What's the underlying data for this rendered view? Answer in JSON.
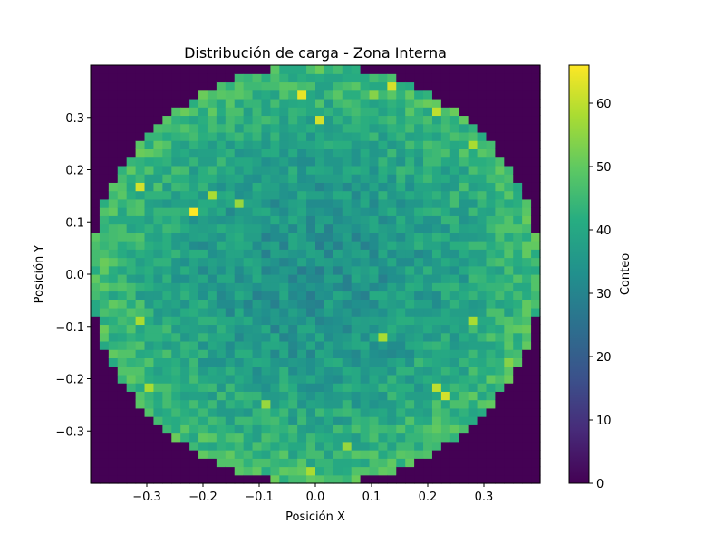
{
  "chart_data": {
    "type": "heatmap",
    "title": "Distribución de carga - Zona Interna",
    "xlabel": "Posición X",
    "ylabel": "Posición Y",
    "colorbar_label": "Conteo",
    "colormap": "viridis",
    "xlim": [
      -0.4,
      0.4
    ],
    "ylim": [
      -0.4,
      0.4
    ],
    "clim": [
      0,
      66
    ],
    "bins": [
      50,
      50
    ],
    "x_ticks": [
      "−0.3",
      "−0.2",
      "−0.1",
      "0.0",
      "0.1",
      "0.2",
      "0.3"
    ],
    "x_tick_values": [
      -0.3,
      -0.2,
      -0.1,
      0.0,
      0.1,
      0.2,
      0.3
    ],
    "y_ticks": [
      "−0.3",
      "−0.2",
      "−0.1",
      "0.0",
      "0.1",
      "0.2",
      "0.3"
    ],
    "y_tick_values": [
      -0.3,
      -0.2,
      -0.1,
      0.0,
      0.1,
      0.2,
      0.3
    ],
    "colorbar_ticks": [
      "0",
      "10",
      "20",
      "30",
      "40",
      "50",
      "60"
    ],
    "colorbar_tick_values": [
      0,
      10,
      20,
      30,
      40,
      50,
      60
    ],
    "circle_radius": 0.4,
    "count_center": 34,
    "count_edge": 46,
    "count_noise": 6,
    "hotspots": [
      {
        "x": -0.024,
        "y": 0.344,
        "value": 64
      },
      {
        "x": 0.008,
        "y": 0.296,
        "value": 62
      },
      {
        "x": 0.136,
        "y": 0.36,
        "value": 62
      },
      {
        "x": 0.216,
        "y": 0.312,
        "value": 60
      },
      {
        "x": 0.28,
        "y": 0.248,
        "value": 58
      },
      {
        "x": -0.312,
        "y": 0.168,
        "value": 62
      },
      {
        "x": -0.216,
        "y": 0.12,
        "value": 66
      },
      {
        "x": -0.184,
        "y": 0.152,
        "value": 58
      },
      {
        "x": -0.136,
        "y": 0.136,
        "value": 56
      },
      {
        "x": -0.312,
        "y": -0.088,
        "value": 58
      },
      {
        "x": 0.12,
        "y": -0.12,
        "value": 58
      },
      {
        "x": 0.28,
        "y": -0.088,
        "value": 58
      },
      {
        "x": 0.232,
        "y": -0.232,
        "value": 62
      },
      {
        "x": 0.216,
        "y": -0.216,
        "value": 60
      },
      {
        "x": -0.296,
        "y": -0.216,
        "value": 58
      },
      {
        "x": -0.088,
        "y": -0.248,
        "value": 56
      },
      {
        "x": 0.056,
        "y": -0.328,
        "value": 56
      },
      {
        "x": -0.008,
        "y": -0.376,
        "value": 58
      },
      {
        "x": 0.344,
        "y": -0.168,
        "value": 54
      },
      {
        "x": 0.104,
        "y": 0.344,
        "value": 54
      }
    ]
  }
}
